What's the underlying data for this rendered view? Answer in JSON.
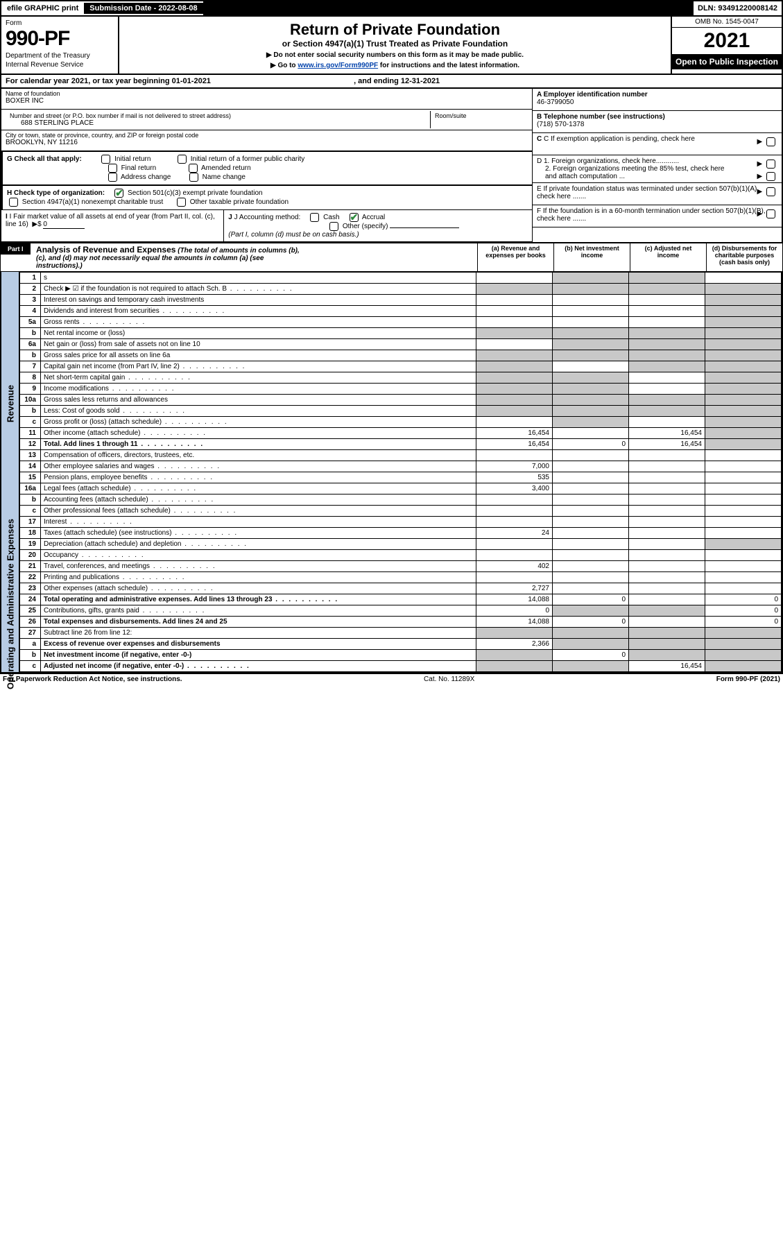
{
  "colors": {
    "header_blue": "#b8cce4",
    "shaded_gray": "#c8c8c8",
    "check_green": "#2e8b3d",
    "link_blue": "#0645ad"
  },
  "top_bar": {
    "efile": "efile GRAPHIC print",
    "submission": "Submission Date - 2022-08-08",
    "dln": "DLN: 93491220008142"
  },
  "header": {
    "form_word": "Form",
    "form_number": "990-PF",
    "dept1": "Department of the Treasury",
    "dept2": "Internal Revenue Service",
    "title": "Return of Private Foundation",
    "subtitle": "or Section 4947(a)(1) Trust Treated as Private Foundation",
    "note1": "▶ Do not enter social security numbers on this form as it may be made public.",
    "note2_pre": "▶ Go to ",
    "note2_link": "www.irs.gov/Form990PF",
    "note2_post": " for instructions and the latest information.",
    "omb": "OMB No. 1545-0047",
    "year": "2021",
    "open": "Open to Public Inspection"
  },
  "cal_year": {
    "text_pre": "For calendar year 2021, or tax year beginning ",
    "begin": "01-01-2021",
    "text_mid": " , and ending ",
    "end": "12-31-2021"
  },
  "identity": {
    "name_label": "Name of foundation",
    "name": "BOXER INC",
    "addr_label": "Number and street (or P.O. box number if mail is not delivered to street address)",
    "addr": "688 STERLING PLACE",
    "room_label": "Room/suite",
    "room": "",
    "city_label": "City or town, state or province, country, and ZIP or foreign postal code",
    "city": "BROOKLYN, NY  11216",
    "ein_label": "A Employer identification number",
    "ein": "46-3799050",
    "tel_label": "B Telephone number (see instructions)",
    "tel": "(718) 570-1378",
    "c_label": "C If exemption application is pending, check here"
  },
  "section_g": {
    "label": "G Check all that apply:",
    "opts": [
      "Initial return",
      "Final return",
      "Address change",
      "Initial return of a former public charity",
      "Amended return",
      "Name change"
    ]
  },
  "section_h": {
    "label": "H Check type of organization:",
    "opt1": "Section 501(c)(3) exempt private foundation",
    "opt2": "Section 4947(a)(1) nonexempt charitable trust",
    "opt3": "Other taxable private foundation"
  },
  "section_i": {
    "label": "I Fair market value of all assets at end of year (from Part II, col. (c), line 16)",
    "arrow": "▶$",
    "value": "0"
  },
  "section_j": {
    "label": "J Accounting method:",
    "cash": "Cash",
    "accrual": "Accrual",
    "other": "Other (specify)",
    "note": "(Part I, column (d) must be on cash basis.)"
  },
  "right_d": {
    "d1": "D 1. Foreign organizations, check here............",
    "d2": "2. Foreign organizations meeting the 85% test, check here and attach computation ...",
    "e": "E  If private foundation status was terminated under section 507(b)(1)(A), check here .......",
    "f": "F  If the foundation is in a 60-month termination under section 507(b)(1)(B), check here ......."
  },
  "part1": {
    "label": "Part I",
    "title": "Analysis of Revenue and Expenses",
    "note": "(The total of amounts in columns (b), (c), and (d) may not necessarily equal the amounts in column (a) (see instructions).)",
    "col_a": "(a)   Revenue and expenses per books",
    "col_b": "(b)   Net investment income",
    "col_c": "(c)   Adjusted net income",
    "col_d": "(d)  Disbursements for charitable purposes (cash basis only)"
  },
  "side_labels": {
    "revenue": "Revenue",
    "expenses": "Operating and Administrative Expenses"
  },
  "rows": [
    {
      "n": "1",
      "d": "s",
      "a": "",
      "b": "s",
      "c": "s"
    },
    {
      "n": "2",
      "d": "Check ▶ ☑ if the foundation is not required to attach Sch. B",
      "dots": true,
      "a": "s",
      "b": "s",
      "c": "s",
      "dd": "s"
    },
    {
      "n": "3",
      "d": "Interest on savings and temporary cash investments",
      "a": "",
      "b": "",
      "c": "",
      "dd": "s"
    },
    {
      "n": "4",
      "d": "Dividends and interest from securities",
      "dots": true,
      "a": "",
      "b": "",
      "c": "",
      "dd": "s"
    },
    {
      "n": "5a",
      "d": "Gross rents",
      "dots": true,
      "a": "",
      "b": "",
      "c": "",
      "dd": "s"
    },
    {
      "n": "b",
      "d": "Net rental income or (loss)",
      "a": "s",
      "b": "s",
      "c": "s",
      "dd": "s"
    },
    {
      "n": "6a",
      "d": "Net gain or (loss) from sale of assets not on line 10",
      "a": "",
      "b": "s",
      "c": "s",
      "dd": "s"
    },
    {
      "n": "b",
      "d": "Gross sales price for all assets on line 6a",
      "a": "s",
      "b": "s",
      "c": "s",
      "dd": "s"
    },
    {
      "n": "7",
      "d": "Capital gain net income (from Part IV, line 2)",
      "dots": true,
      "a": "s",
      "b": "",
      "c": "s",
      "dd": "s"
    },
    {
      "n": "8",
      "d": "Net short-term capital gain",
      "dots": true,
      "a": "s",
      "b": "s",
      "c": "",
      "dd": "s"
    },
    {
      "n": "9",
      "d": "Income modifications",
      "dots": true,
      "a": "s",
      "b": "s",
      "c": "",
      "dd": "s"
    },
    {
      "n": "10a",
      "d": "Gross sales less returns and allowances",
      "a": "s",
      "b": "s",
      "c": "s",
      "dd": "s"
    },
    {
      "n": "b",
      "d": "Less: Cost of goods sold",
      "dots": true,
      "a": "s",
      "b": "s",
      "c": "s",
      "dd": "s"
    },
    {
      "n": "c",
      "d": "Gross profit or (loss) (attach schedule)",
      "dots": true,
      "a": "",
      "b": "s",
      "c": "",
      "dd": "s"
    },
    {
      "n": "11",
      "d": "Other income (attach schedule)",
      "dots": true,
      "a": "16,454",
      "b": "",
      "c": "16,454",
      "dd": "s"
    },
    {
      "n": "12",
      "d": "Total. Add lines 1 through 11",
      "dots": true,
      "bold": true,
      "a": "16,454",
      "b": "0",
      "c": "16,454",
      "dd": "s"
    },
    {
      "n": "13",
      "d": "Compensation of officers, directors, trustees, etc.",
      "a": "",
      "b": "",
      "c": "",
      "dd": ""
    },
    {
      "n": "14",
      "d": "Other employee salaries and wages",
      "dots": true,
      "a": "7,000",
      "b": "",
      "c": "",
      "dd": ""
    },
    {
      "n": "15",
      "d": "Pension plans, employee benefits",
      "dots": true,
      "a": "535",
      "b": "",
      "c": "",
      "dd": ""
    },
    {
      "n": "16a",
      "d": "Legal fees (attach schedule)",
      "dots": true,
      "a": "3,400",
      "b": "",
      "c": "",
      "dd": ""
    },
    {
      "n": "b",
      "d": "Accounting fees (attach schedule)",
      "dots": true,
      "a": "",
      "b": "",
      "c": "",
      "dd": ""
    },
    {
      "n": "c",
      "d": "Other professional fees (attach schedule)",
      "dots": true,
      "a": "",
      "b": "",
      "c": "",
      "dd": ""
    },
    {
      "n": "17",
      "d": "Interest",
      "dots": true,
      "a": "",
      "b": "",
      "c": "",
      "dd": ""
    },
    {
      "n": "18",
      "d": "Taxes (attach schedule) (see instructions)",
      "dots": true,
      "a": "24",
      "b": "",
      "c": "",
      "dd": ""
    },
    {
      "n": "19",
      "d": "Depreciation (attach schedule) and depletion",
      "dots": true,
      "a": "",
      "b": "",
      "c": "",
      "dd": "s"
    },
    {
      "n": "20",
      "d": "Occupancy",
      "dots": true,
      "a": "",
      "b": "",
      "c": "",
      "dd": ""
    },
    {
      "n": "21",
      "d": "Travel, conferences, and meetings",
      "dots": true,
      "a": "402",
      "b": "",
      "c": "",
      "dd": ""
    },
    {
      "n": "22",
      "d": "Printing and publications",
      "dots": true,
      "a": "",
      "b": "",
      "c": "",
      "dd": ""
    },
    {
      "n": "23",
      "d": "Other expenses (attach schedule)",
      "dots": true,
      "a": "2,727",
      "b": "",
      "c": "",
      "dd": ""
    },
    {
      "n": "24",
      "d": "Total operating and administrative expenses. Add lines 13 through 23",
      "dots": true,
      "bold": true,
      "a": "14,088",
      "b": "0",
      "c": "",
      "dd": "0"
    },
    {
      "n": "25",
      "d": "Contributions, gifts, grants paid",
      "dots": true,
      "a": "0",
      "b": "s",
      "c": "s",
      "dd": "0"
    },
    {
      "n": "26",
      "d": "Total expenses and disbursements. Add lines 24 and 25",
      "bold": true,
      "a": "14,088",
      "b": "0",
      "c": "",
      "dd": "0"
    },
    {
      "n": "27",
      "d": "Subtract line 26 from line 12:",
      "a": "s",
      "b": "s",
      "c": "s",
      "dd": "s"
    },
    {
      "n": "a",
      "d": "Excess of revenue over expenses and disbursements",
      "bold": true,
      "a": "2,366",
      "b": "s",
      "c": "s",
      "dd": "s"
    },
    {
      "n": "b",
      "d": "Net investment income (if negative, enter -0-)",
      "bold": true,
      "a": "s",
      "b": "0",
      "c": "s",
      "dd": "s"
    },
    {
      "n": "c",
      "d": "Adjusted net income (if negative, enter -0-)",
      "dots": true,
      "bold": true,
      "a": "s",
      "b": "s",
      "c": "16,454",
      "dd": "s"
    }
  ],
  "footer": {
    "left": "For Paperwork Reduction Act Notice, see instructions.",
    "mid": "Cat. No. 11289X",
    "right": "Form 990-PF (2021)"
  }
}
